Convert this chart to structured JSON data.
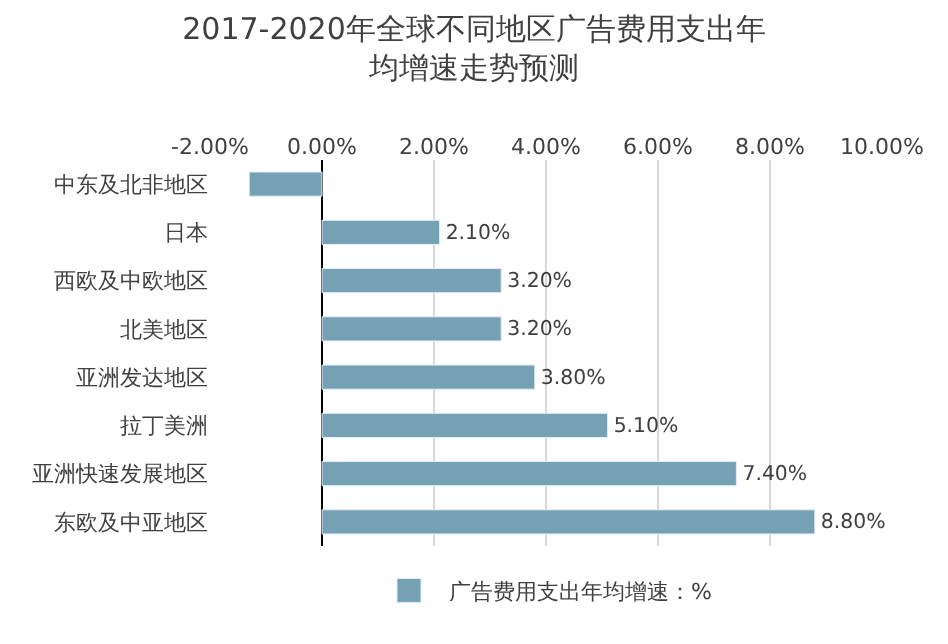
{
  "chart_data": {
    "type": "bar",
    "orientation": "horizontal",
    "title": "2017-2020年全球不同地区广告费用支出年均增速走势预测",
    "categories": [
      "中东及北非地区",
      "日本",
      "西欧及中欧地区",
      "北美地区",
      "亚洲发达地区",
      "拉丁美洲",
      "亚洲快速发展地区",
      "东欧及中亚地区"
    ],
    "series": [
      {
        "name": "广告费用支出年均增速：%",
        "color": "#75a1b4",
        "values": [
          -1.3,
          2.1,
          3.2,
          3.2,
          3.8,
          5.1,
          7.4,
          8.8
        ],
        "value_labels": [
          null,
          "2.10%",
          "3.20%",
          "3.20%",
          "3.80%",
          "5.10%",
          "7.40%",
          "8.80%"
        ]
      }
    ],
    "xlim": [
      -2,
      10
    ],
    "xticks": [
      {
        "value": -2,
        "label": "-2.00%"
      },
      {
        "value": 0,
        "label": "0.00%"
      },
      {
        "value": 2,
        "label": "2.00%"
      },
      {
        "value": 4,
        "label": "4.00%"
      },
      {
        "value": 6,
        "label": "6.00%"
      },
      {
        "value": 8,
        "label": "8.00%"
      },
      {
        "value": 10,
        "label": "10.00%"
      }
    ],
    "grid": "x",
    "legend": "bottom"
  }
}
